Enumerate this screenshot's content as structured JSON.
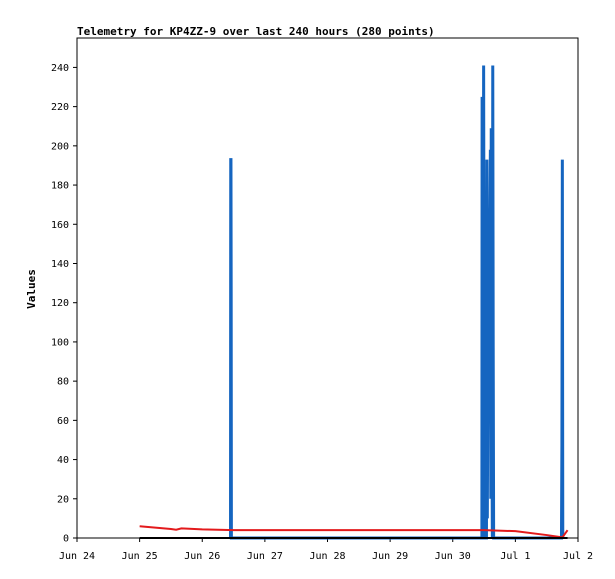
{
  "chart_data": {
    "type": "line",
    "title": "Telemetry for KP4ZZ-9 over last 240 hours (280 points)",
    "xlabel": "",
    "ylabel": "Values",
    "x_ticks": [
      "Jun 24",
      "Jun 25",
      "Jun 26",
      "Jun 27",
      "Jun 28",
      "Jun 29",
      "Jun 30",
      "Jul 1",
      "Jul 2"
    ],
    "y_ticks": [
      0,
      20,
      40,
      60,
      80,
      100,
      120,
      140,
      160,
      180,
      200,
      220,
      240
    ],
    "xlim": [
      "2024-06-24T00:00",
      "2024-07-02T00:00"
    ],
    "ylim": [
      0,
      255
    ],
    "grid": false,
    "colors": {
      "series_1": "#1565c0",
      "series_2": "#e31a1c",
      "axis": "#000000",
      "background": "#ffffff"
    },
    "series": [
      {
        "color": "#1565c0",
        "style": "spikes",
        "points": [
          {
            "x": "2024-06-26T10:50",
            "y": 0
          },
          {
            "x": "2024-06-26T10:55",
            "y": 193
          },
          {
            "x": "2024-06-26T11:00",
            "y": 193
          },
          {
            "x": "2024-06-26T11:05",
            "y": 128
          },
          {
            "x": "2024-06-26T11:10",
            "y": 0
          },
          {
            "x": "2024-06-30T11:10",
            "y": 0
          },
          {
            "x": "2024-06-30T11:15",
            "y": 225
          },
          {
            "x": "2024-06-30T11:25",
            "y": 177
          },
          {
            "x": "2024-06-30T11:35",
            "y": 0
          },
          {
            "x": "2024-06-30T11:50",
            "y": 241
          },
          {
            "x": "2024-06-30T12:00",
            "y": 112
          },
          {
            "x": "2024-06-30T12:10",
            "y": 0
          },
          {
            "x": "2024-06-30T12:55",
            "y": 0
          },
          {
            "x": "2024-06-30T13:05",
            "y": 193
          },
          {
            "x": "2024-06-30T13:15",
            "y": 10
          },
          {
            "x": "2024-06-30T13:30",
            "y": 95
          },
          {
            "x": "2024-06-30T13:45",
            "y": 60
          },
          {
            "x": "2024-06-30T14:05",
            "y": 135
          },
          {
            "x": "2024-06-30T14:25",
            "y": 198
          },
          {
            "x": "2024-06-30T14:35",
            "y": 20
          },
          {
            "x": "2024-06-30T14:45",
            "y": 209
          },
          {
            "x": "2024-06-30T14:55",
            "y": 178
          },
          {
            "x": "2024-06-30T15:05",
            "y": 32
          },
          {
            "x": "2024-06-30T15:10",
            "y": 0
          },
          {
            "x": "2024-06-30T15:20",
            "y": 241
          },
          {
            "x": "2024-06-30T15:30",
            "y": 97
          },
          {
            "x": "2024-06-30T15:40",
            "y": 0
          },
          {
            "x": "2024-07-01T17:40",
            "y": 0
          },
          {
            "x": "2024-07-01T17:50",
            "y": 48
          },
          {
            "x": "2024-07-01T18:00",
            "y": 193
          },
          {
            "x": "2024-07-01T18:10",
            "y": 0
          }
        ]
      },
      {
        "color": "#e31a1c",
        "style": "line",
        "points": [
          {
            "x": "2024-06-25T00:00",
            "y": 6
          },
          {
            "x": "2024-06-25T06:00",
            "y": 5.3
          },
          {
            "x": "2024-06-25T12:00",
            "y": 4.6
          },
          {
            "x": "2024-06-25T14:00",
            "y": 4.2
          },
          {
            "x": "2024-06-25T16:00",
            "y": 4.9
          },
          {
            "x": "2024-06-25T18:00",
            "y": 4.8
          },
          {
            "x": "2024-06-26T00:00",
            "y": 4.4
          },
          {
            "x": "2024-06-26T12:00",
            "y": 4
          },
          {
            "x": "2024-06-27T00:00",
            "y": 4
          },
          {
            "x": "2024-06-28T00:00",
            "y": 4
          },
          {
            "x": "2024-06-29T00:00",
            "y": 4
          },
          {
            "x": "2024-06-30T00:00",
            "y": 4
          },
          {
            "x": "2024-06-30T12:00",
            "y": 4
          },
          {
            "x": "2024-07-01T00:00",
            "y": 3.5
          },
          {
            "x": "2024-07-01T12:00",
            "y": 1.5
          },
          {
            "x": "2024-07-01T18:00",
            "y": 0.3
          },
          {
            "x": "2024-07-01T20:00",
            "y": 4
          }
        ]
      },
      {
        "color": "#000000",
        "style": "line",
        "points": [
          {
            "x": "2024-06-25T00:00",
            "y": 0
          },
          {
            "x": "2024-07-01T20:00",
            "y": 0
          }
        ]
      }
    ]
  }
}
